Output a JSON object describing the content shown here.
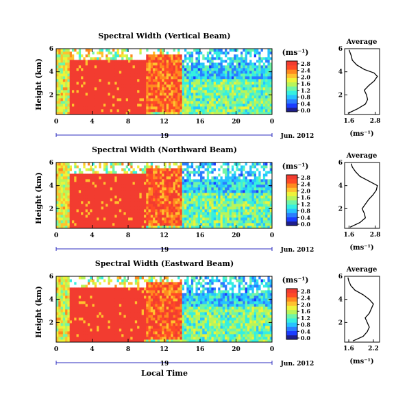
{
  "figure": {
    "x_axis_label": "Local Time",
    "colors": {
      "colormap": [
        "#1e1e8c",
        "#1a3cff",
        "#2a7dff",
        "#27c3ff",
        "#35f0e0",
        "#6ff5a8",
        "#b8f55a",
        "#eef33a",
        "#ffc22e",
        "#ff8a1f",
        "#ff4a26",
        "#f23c30"
      ],
      "outline": "#000000",
      "date_bar": "#2b2bbf",
      "missing": "#ffffff"
    }
  },
  "panels": [
    {
      "title": "Spectral Width (Vertical Beam)",
      "ylabel": "Height (km)",
      "unit_label": "(ms⁻¹)",
      "date_label": "19",
      "date_suffix": "Jun. 2012",
      "colorbar_ticks": [
        "2.8",
        "2.4",
        "2.0",
        "1.6",
        "1.2",
        "0.8",
        "0.4",
        "0.0"
      ],
      "avg_title": "Average",
      "avg_xlabel": "(ms⁻¹)",
      "avg_xticks": [
        "1.6",
        "2.8"
      ]
    },
    {
      "title": "Spectral Width (Northward Beam)",
      "ylabel": "Height (km)",
      "unit_label": "(ms⁻¹)",
      "date_label": "19",
      "date_suffix": "Jun. 2012",
      "colorbar_ticks": [
        "2.8",
        "2.4",
        "2.0",
        "1.6",
        "1.2",
        "0.8",
        "0.4",
        "0.0"
      ],
      "avg_title": "Average",
      "avg_xlabel": "(ms⁻¹)",
      "avg_xticks": [
        "1.6",
        "2.8"
      ]
    },
    {
      "title": "Spectral Width (Eastward Beam)",
      "ylabel": "Height (km)",
      "unit_label": "(ms⁻¹)",
      "date_label": "19",
      "date_suffix": "Jun. 2012",
      "colorbar_ticks": [
        "2.8",
        "2.4",
        "2.0",
        "1.6",
        "1.2",
        "0.8",
        "0.4",
        "0.0"
      ],
      "avg_title": "Average",
      "avg_xlabel": "(ms⁻¹)",
      "avg_xticks": [
        "1.6",
        "2.2"
      ]
    }
  ],
  "chart_data": [
    {
      "type": "heatmap",
      "title": "Spectral Width (Vertical Beam)",
      "ylabel": "Height (km)",
      "xlabel": "",
      "x_tick_labels": [
        "0",
        "4",
        "8",
        "12",
        "16",
        "20",
        "0"
      ],
      "x_range_hours": [
        0,
        24
      ],
      "y_ticks": [
        2,
        4,
        6
      ],
      "y_range_km": [
        0.3,
        6.0
      ],
      "value_range": [
        0.0,
        2.8
      ],
      "regions": [
        {
          "t": [
            1.5,
            10.0
          ],
          "h": [
            0.4,
            5.1
          ],
          "v": 2.8
        },
        {
          "t": [
            10.0,
            14.0
          ],
          "h": [
            0.5,
            5.6
          ],
          "v": 2.4
        },
        {
          "t": [
            14.0,
            24.0
          ],
          "h": [
            3.5,
            6.0
          ],
          "v": 0.9
        },
        {
          "t": [
            14.0,
            24.0
          ],
          "h": [
            0.3,
            3.5
          ],
          "v": 1.3
        },
        {
          "t": [
            0.0,
            1.5
          ],
          "h": [
            0.3,
            6.0
          ],
          "v": 1.7
        }
      ],
      "average_profile": {
        "x_ticks": [
          1.6,
          2.8
        ],
        "x_range": [
          1.4,
          3.0
        ],
        "height_km": [
          0.4,
          0.8,
          1.2,
          1.6,
          2.0,
          2.4,
          2.8,
          3.2,
          3.6,
          3.9,
          4.2,
          4.6,
          5.0,
          5.4,
          5.9
        ],
        "value": [
          1.55,
          2.0,
          2.35,
          2.45,
          2.4,
          2.3,
          2.5,
          2.75,
          2.9,
          2.75,
          2.3,
          1.95,
          1.75,
          1.7,
          1.6
        ]
      }
    },
    {
      "type": "heatmap",
      "title": "Spectral Width (Northward Beam)",
      "ylabel": "Height (km)",
      "xlabel": "",
      "x_tick_labels": [
        "0",
        "4",
        "8",
        "12",
        "16",
        "20",
        "0"
      ],
      "x_range_hours": [
        0,
        24
      ],
      "y_ticks": [
        2,
        4,
        6
      ],
      "y_range_km": [
        0.3,
        6.0
      ],
      "value_range": [
        0.0,
        2.8
      ],
      "regions": [
        {
          "t": [
            1.5,
            10.0
          ],
          "h": [
            0.4,
            5.1
          ],
          "v": 2.8
        },
        {
          "t": [
            10.0,
            14.0
          ],
          "h": [
            0.5,
            5.6
          ],
          "v": 2.4
        },
        {
          "t": [
            14.0,
            24.0
          ],
          "h": [
            3.5,
            6.0
          ],
          "v": 0.9
        },
        {
          "t": [
            14.0,
            24.0
          ],
          "h": [
            0.3,
            3.5
          ],
          "v": 1.3
        },
        {
          "t": [
            0.0,
            1.5
          ],
          "h": [
            0.3,
            6.0
          ],
          "v": 1.7
        }
      ],
      "average_profile": {
        "x_ticks": [
          1.6,
          2.8
        ],
        "x_range": [
          1.4,
          3.0
        ],
        "height_km": [
          0.4,
          0.8,
          1.2,
          1.6,
          2.0,
          2.4,
          2.8,
          3.2,
          3.6,
          4.0,
          4.4,
          4.8,
          5.2,
          5.6,
          5.9
        ],
        "value": [
          1.65,
          2.1,
          2.35,
          2.3,
          2.2,
          2.35,
          2.5,
          2.7,
          2.85,
          2.9,
          2.5,
          2.1,
          1.9,
          1.75,
          1.7
        ]
      }
    },
    {
      "type": "heatmap",
      "title": "Spectral Width (Eastward Beam)",
      "ylabel": "Height (km)",
      "xlabel": "Local Time",
      "x_tick_labels": [
        "0",
        "4",
        "8",
        "12",
        "16",
        "20",
        "0"
      ],
      "x_range_hours": [
        0,
        24
      ],
      "y_ticks": [
        2,
        4,
        6
      ],
      "y_range_km": [
        0.3,
        6.0
      ],
      "value_range": [
        0.0,
        2.8
      ],
      "regions": [
        {
          "t": [
            1.5,
            10.0
          ],
          "h": [
            0.4,
            5.1
          ],
          "v": 2.8
        },
        {
          "t": [
            10.0,
            14.0
          ],
          "h": [
            0.5,
            5.6
          ],
          "v": 2.4
        },
        {
          "t": [
            14.0,
            24.0
          ],
          "h": [
            3.5,
            6.0
          ],
          "v": 0.9
        },
        {
          "t": [
            14.0,
            24.0
          ],
          "h": [
            0.3,
            3.5
          ],
          "v": 1.3
        },
        {
          "t": [
            0.0,
            1.5
          ],
          "h": [
            0.3,
            6.0
          ],
          "v": 1.7
        }
      ],
      "average_profile": {
        "x_ticks": [
          1.6,
          2.2
        ],
        "x_range": [
          1.5,
          2.35
        ],
        "height_km": [
          0.4,
          0.8,
          1.2,
          1.6,
          2.0,
          2.4,
          2.8,
          3.2,
          3.6,
          4.0,
          4.4,
          4.8,
          5.2,
          5.6,
          5.9
        ],
        "value": [
          1.7,
          1.95,
          2.05,
          2.1,
          2.05,
          2.0,
          2.1,
          2.15,
          2.2,
          2.1,
          1.95,
          1.75,
          1.65,
          1.6,
          1.58
        ]
      }
    }
  ]
}
